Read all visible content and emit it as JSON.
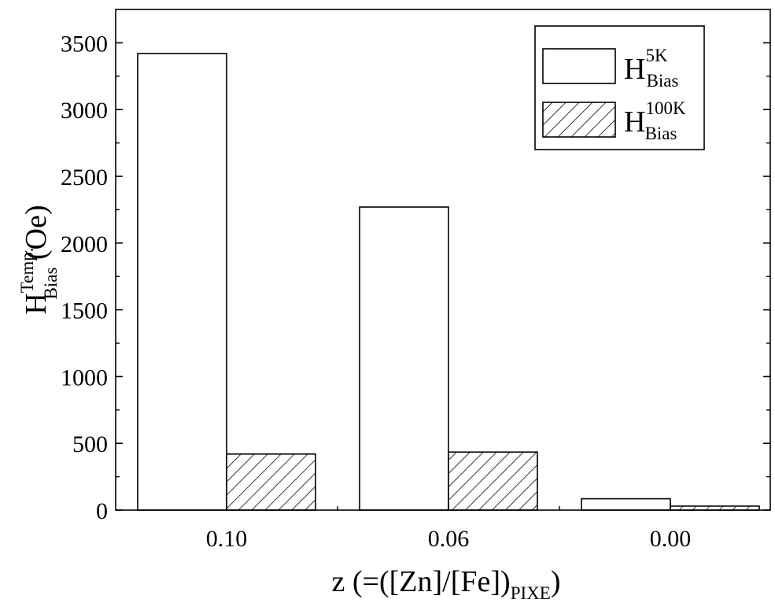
{
  "chart_data": {
    "type": "bar",
    "categories": [
      "0.10",
      "0.06",
      "0.00"
    ],
    "series": [
      {
        "name_main": "H",
        "name_sup": "5K",
        "name_sub": "Bias",
        "pattern": "none",
        "values": [
          3420,
          2270,
          85
        ]
      },
      {
        "name_main": "H",
        "name_sup": "100K",
        "name_sub": "Bias",
        "pattern": "hatch",
        "values": [
          420,
          435,
          30
        ]
      }
    ],
    "xlabel": {
      "main": "z (=([Zn]/[Fe])",
      "sub": "PIXE",
      "tail": ")"
    },
    "ylabel": {
      "main": "H",
      "sup": "Temp.",
      "sub": "Bias",
      "tail": " (Oe)"
    },
    "yticks": [
      0,
      500,
      1000,
      1500,
      2000,
      2500,
      3000,
      3500
    ],
    "ylim": [
      0,
      3750
    ],
    "legend_position": "top-right",
    "grid": false
  }
}
